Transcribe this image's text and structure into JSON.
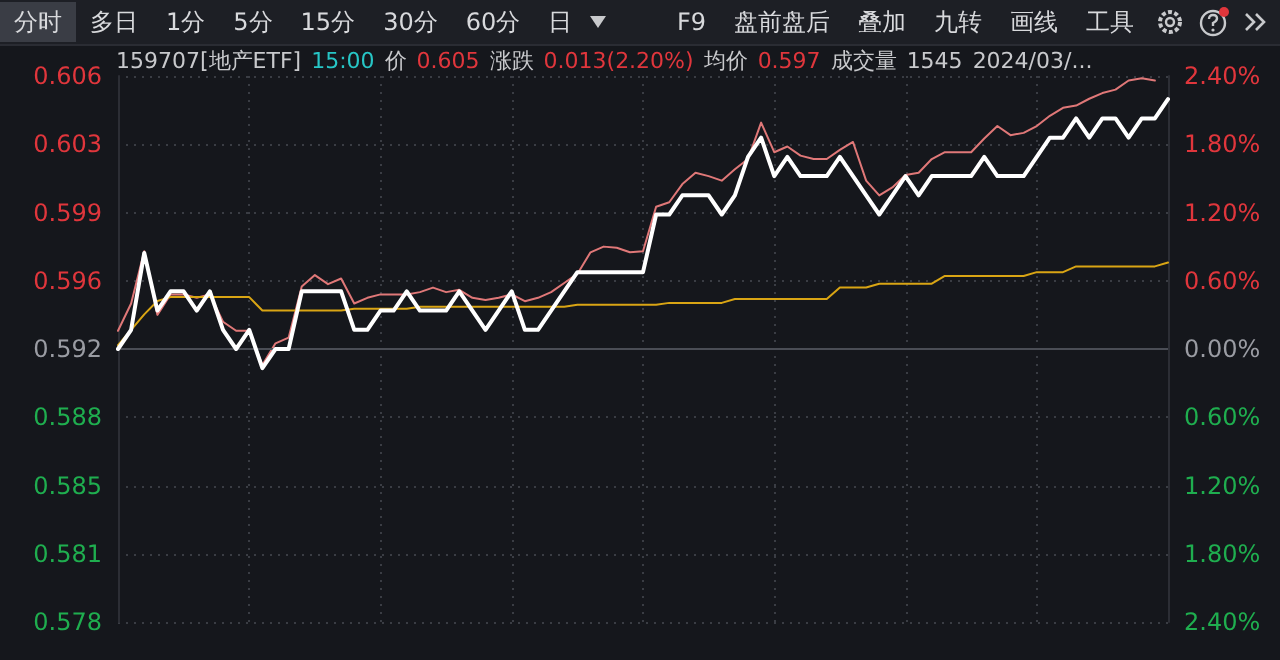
{
  "chart_data": {
    "type": "line",
    "title": "159707[地产ETF] 15:00 价 0.605 涨跌 0.013(2.20%) 均价 0.597 成交量 1545 2024/03/...",
    "annotations": [
      "分时",
      "多日",
      "1分",
      "5分",
      "15分",
      "30分",
      "60分",
      "日",
      "F9",
      "盘前盘后",
      "叠加",
      "九转",
      "画线",
      "工具"
    ],
    "categories": [
      null,
      null,
      null,
      null,
      null,
      null,
      null,
      null,
      null,
      null,
      null,
      null,
      null,
      null,
      null,
      null,
      null,
      null,
      null,
      null,
      null,
      null,
      null,
      null,
      null,
      null,
      null,
      null,
      null,
      null,
      null,
      null,
      null,
      null,
      null,
      null,
      null,
      null,
      null,
      null,
      null,
      null,
      null,
      null,
      null,
      null,
      null,
      null,
      null,
      null,
      null,
      null,
      null,
      null,
      null,
      null,
      null,
      null,
      null,
      null,
      null,
      null,
      null,
      null,
      null,
      null,
      null,
      null,
      null,
      null,
      null,
      null,
      null,
      null,
      null,
      null,
      null,
      null,
      null,
      null,
      null
    ],
    "series": [
      {
        "color": "#e07878",
        "axis": "y2",
        "values": [
          0.16,
          0.4,
          0.86,
          0.3,
          0.48,
          0.48,
          0.45,
          0.48,
          0.24,
          0.16,
          0.16,
          -0.14,
          0.05,
          0.1,
          0.55,
          0.65,
          0.57,
          0.62,
          0.4,
          0.45,
          0.48,
          0.48,
          0.48,
          0.5,
          0.54,
          0.5,
          0.52,
          0.45,
          0.43,
          0.45,
          0.48,
          0.42,
          0.45,
          0.5,
          0.58,
          0.66,
          0.85,
          0.9,
          0.89,
          0.85,
          0.86,
          1.25,
          1.29,
          1.45,
          1.55,
          1.52,
          1.48,
          1.58,
          1.67,
          1.99,
          1.73,
          1.78,
          1.7,
          1.67,
          1.67,
          1.75,
          1.82,
          1.48,
          1.35,
          1.42,
          1.53,
          1.55,
          1.67,
          1.73,
          1.73,
          1.73,
          1.85,
          1.96,
          1.88,
          1.9,
          1.96,
          2.05,
          2.12,
          2.14,
          2.2,
          2.25,
          2.28,
          2.36,
          2.38,
          2.36,
          null
        ]
      },
      {
        "color": "#d9a514",
        "values": [
          0.5922,
          0.593,
          0.5938,
          0.5945,
          0.5947,
          0.5947,
          0.5947,
          0.5947,
          0.5947,
          0.5947,
          0.5947,
          0.594,
          0.594,
          0.594,
          0.594,
          0.594,
          0.594,
          0.594,
          0.5941,
          0.5941,
          0.5941,
          0.5941,
          0.5941,
          0.5942,
          0.5942,
          0.5942,
          0.5942,
          0.5942,
          0.5942,
          0.5942,
          0.5942,
          0.5942,
          0.5942,
          0.5942,
          0.5942,
          0.5943,
          0.5943,
          0.5943,
          0.5943,
          0.5943,
          0.5943,
          0.5943,
          0.5944,
          0.5944,
          0.5944,
          0.5944,
          0.5944,
          0.5946,
          0.5946,
          0.5946,
          0.5946,
          0.5946,
          0.5946,
          0.5946,
          0.5946,
          0.5952,
          0.5952,
          0.5952,
          0.5954,
          0.5954,
          0.5954,
          0.5954,
          0.5954,
          0.5958,
          0.5958,
          0.5958,
          0.5958,
          0.5958,
          0.5958,
          0.5958,
          0.596,
          0.596,
          0.596,
          0.5963,
          0.5963,
          0.5963,
          0.5963,
          0.5963,
          0.5963,
          0.5963,
          0.5965
        ]
      },
      {
        "color": "#ffffff",
        "values": [
          0.592,
          0.593,
          0.597,
          0.594,
          0.595,
          0.595,
          0.594,
          0.595,
          0.593,
          0.592,
          0.593,
          0.591,
          0.592,
          0.592,
          0.595,
          0.595,
          0.595,
          0.595,
          0.593,
          0.593,
          0.594,
          0.594,
          0.595,
          0.594,
          0.594,
          0.594,
          0.595,
          0.594,
          0.593,
          0.594,
          0.595,
          0.593,
          0.593,
          0.594,
          0.595,
          0.596,
          0.596,
          0.596,
          0.596,
          0.596,
          0.596,
          0.599,
          0.599,
          0.6,
          0.6,
          0.6,
          0.599,
          0.6,
          0.602,
          0.603,
          0.601,
          0.602,
          0.601,
          0.601,
          0.601,
          0.602,
          0.601,
          0.6,
          0.599,
          0.6,
          0.601,
          0.6,
          0.601,
          0.601,
          0.601,
          0.601,
          0.602,
          0.601,
          0.601,
          0.601,
          0.602,
          0.603,
          0.603,
          0.604,
          0.603,
          0.604,
          0.604,
          0.603,
          0.604,
          0.604,
          0.605
        ]
      }
    ],
    "ylim": [
      0.577792,
      0.606208
    ],
    "yticks": [
      {
        "value": 0.606208,
        "label": "0.606"
      },
      {
        "value": 0.602656,
        "label": "0.603"
      },
      {
        "value": 0.599104,
        "label": "0.599"
      },
      {
        "value": 0.595552,
        "label": "0.596"
      },
      {
        "value": 0.592,
        "label": "0.592"
      },
      {
        "value": 0.588448,
        "label": "0.588"
      },
      {
        "value": 0.584896,
        "label": "0.585"
      },
      {
        "value": 0.581344,
        "label": "0.581"
      },
      {
        "value": 0.577792,
        "label": "0.578"
      }
    ],
    "y2lim": [
      -2.4,
      2.4
    ],
    "y2ticks": [
      {
        "value": 2.4,
        "label": "2.40%"
      },
      {
        "value": 1.8,
        "label": "1.80%"
      },
      {
        "value": 1.2,
        "label": "1.20%"
      },
      {
        "value": 0.6,
        "label": "0.60%"
      },
      {
        "value": 0,
        "label": "0.00%"
      },
      {
        "value": -0.6,
        "label": "0.60%"
      },
      {
        "value": -1.2,
        "label": "1.20%"
      },
      {
        "value": -1.8,
        "label": "1.80%"
      },
      {
        "value": -2.4,
        "label": "2.40%"
      }
    ],
    "ref_lines": [
      {
        "axis": "y",
        "value": 0.592,
        "color": "#4a4d55"
      }
    ],
    "grid": true,
    "tick_labels": "y",
    "line_style": "solid"
  }
}
